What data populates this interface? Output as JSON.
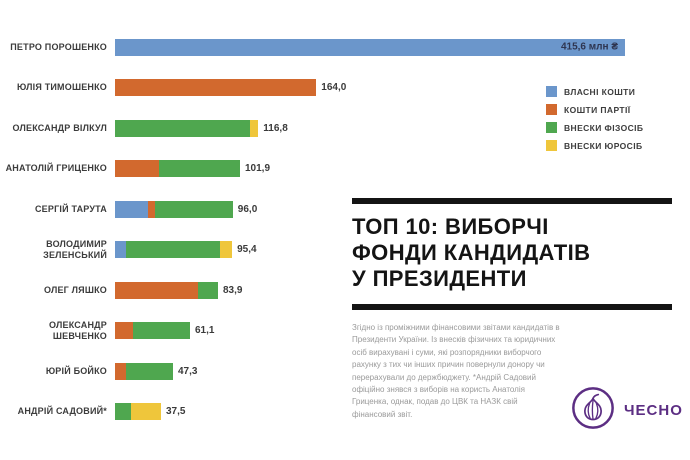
{
  "title_block": {
    "lines": [
      "ТОП 10: ВИБОРЧІ",
      "ФОНДИ КАНДИДАТІВ",
      "У ПРЕЗИДЕНТИ"
    ]
  },
  "footnote": {
    "text": "Згідно із проміжними фінансовими звітами кандидатів в Президенти України. Із внесків фізичних та юридичних осіб вирахувані і суми, які розпорядники виборчого рахунку з тих чи інших причин повернули донору чи перерахували до держбюджету. *Андрій Садовий офіційно знявся з виборів на користь Анатолія Гриценка, однак, подав до ЦВК та НАЗК свій фінансовий звіт."
  },
  "logo": {
    "text": "ЧЕСНО",
    "color": "#5c2e83",
    "icon": "garlic-icon"
  },
  "chart_data": {
    "type": "bar",
    "orientation": "horizontal",
    "stacked": true,
    "title": "ТОП 10: ВИБОРЧІ ФОНДИ КАНДИДАТІВ У ПРЕЗИДЕНТИ",
    "unit": "млн ₴",
    "xlim": [
      0,
      420
    ],
    "grid": false,
    "legend_position": "top-right",
    "categories": [
      "ПЕТРО ПОРОШЕНКО",
      "ЮЛІЯ ТИМОШЕНКО",
      "ОЛЕКСАНДР ВІЛКУЛ",
      "АНАТОЛІЙ ГРИЦЕНКО",
      "СЕРГІЙ ТАРУТА",
      "ВОЛОДИМИР ЗЕЛЕНСЬКИЙ",
      "ОЛЕГ ЛЯШКО",
      "ОЛЕКСАНДР ШЕВЧЕНКО",
      "ЮРІЙ БОЙКО",
      "АНДРІЙ САДОВИЙ*"
    ],
    "totals": [
      415.6,
      164.0,
      116.8,
      101.9,
      96.0,
      95.4,
      83.9,
      61.1,
      47.3,
      37.5
    ],
    "value_labels": [
      "415,6 млн ₴",
      "164,0",
      "116,8",
      "101,9",
      "96,0",
      "95,4",
      "83,9",
      "61,1",
      "47,3",
      "37,5"
    ],
    "series": [
      {
        "name": "ВЛАСНІ КОШТИ",
        "color": "#6b96cb",
        "values": [
          415.6,
          0,
          0,
          0,
          27.0,
          9.0,
          0,
          0,
          0,
          0
        ]
      },
      {
        "name": "КОШТИ ПАРТІЇ",
        "color": "#d2692e",
        "values": [
          0,
          164.0,
          0,
          36.0,
          6.0,
          0,
          68.0,
          15.0,
          9.0,
          0
        ]
      },
      {
        "name": "ВНЕСКИ ФІЗОСІБ",
        "color": "#4fa74f",
        "values": [
          0,
          0,
          110.0,
          65.9,
          63.0,
          76.4,
          15.9,
          46.1,
          38.3,
          13.0
        ]
      },
      {
        "name": "ВНЕСКИ ЮРОСІБ",
        "color": "#efc63b",
        "values": [
          0,
          0,
          6.8,
          0,
          0,
          10.0,
          0,
          0,
          0,
          24.5
        ]
      }
    ]
  }
}
